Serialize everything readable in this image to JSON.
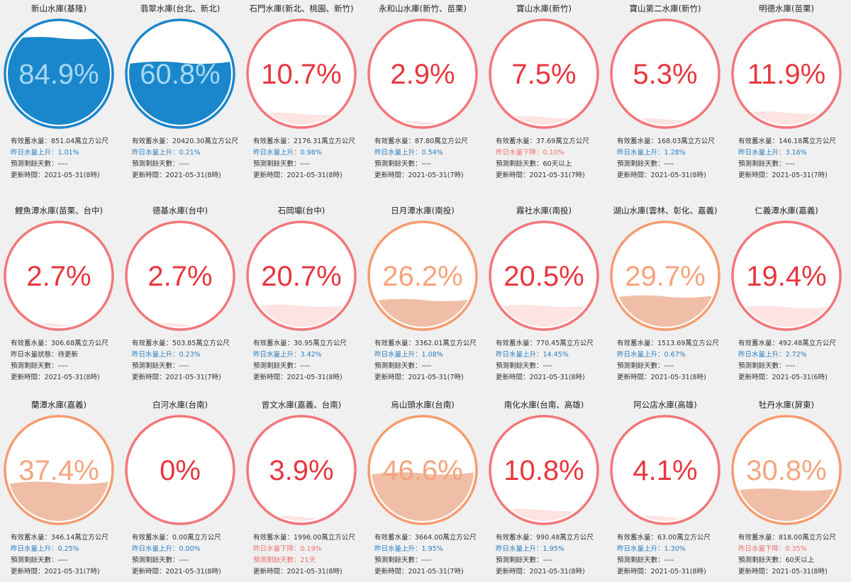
{
  "reservoirs": [
    {
      "name": "新山水庫(基隆)",
      "percent": {
        "value": 84.9,
        "label": "84.9%"
      },
      "color": "#1a87cc",
      "lines": [
        {
          "text": "有效蓄水量：851.04萬立方公尺",
          "color": "#333333"
        },
        {
          "text": "昨日水量上升：1.01%",
          "color": "#2b7fc0"
        },
        {
          "text": "預測剩餘天數：----",
          "color": "#333333"
        },
        {
          "text": "更新時間：2021-05-31(8時)",
          "color": "#333333"
        }
      ]
    },
    {
      "name": "翡翠水庫(台北、新北)",
      "percent": {
        "value": 60.8,
        "label": "60.8%"
      },
      "color": "#1a87cc",
      "lines": [
        {
          "text": "有效蓄水量：20420.30萬立方公尺",
          "color": "#333333"
        },
        {
          "text": "昨日水量上升：0.21%",
          "color": "#2b7fc0"
        },
        {
          "text": "預測剩餘天數：----",
          "color": "#333333"
        },
        {
          "text": "更新時間：2021-05-31(8時)",
          "color": "#333333"
        }
      ]
    },
    {
      "name": "石門水庫(新北、桃園、新竹)",
      "percent": {
        "value": 10.7,
        "label": "10.7%"
      },
      "color": "#f2777a",
      "lines": [
        {
          "text": "有效蓄水量：2176.31萬立方公尺",
          "color": "#333333"
        },
        {
          "text": "昨日水量上升：0.98%",
          "color": "#2b7fc0"
        },
        {
          "text": "預測剩餘天數：----",
          "color": "#333333"
        },
        {
          "text": "更新時間：2021-05-31(8時)",
          "color": "#333333"
        }
      ]
    },
    {
      "name": "永和山水庫(新竹、苗栗)",
      "percent": {
        "value": 2.9,
        "label": "2.9%"
      },
      "color": "#f2777a",
      "lines": [
        {
          "text": "有效蓄水量：87.80萬立方公尺",
          "color": "#333333"
        },
        {
          "text": "昨日水量上升：0.54%",
          "color": "#2b7fc0"
        },
        {
          "text": "預測剩餘天數：----",
          "color": "#333333"
        },
        {
          "text": "更新時間：2021-05-31(7時)",
          "color": "#333333"
        }
      ]
    },
    {
      "name": "寶山水庫(新竹)",
      "percent": {
        "value": 7.5,
        "label": "7.5%"
      },
      "color": "#f2777a",
      "lines": [
        {
          "text": "有效蓄水量：37.69萬立方公尺",
          "color": "#333333"
        },
        {
          "text": "昨日水量下降：0.10%",
          "color": "#f07070"
        },
        {
          "text": "預測剩餘天數：60天以上",
          "color": "#333333"
        },
        {
          "text": "更新時間：2021-05-31(7時)",
          "color": "#333333"
        }
      ]
    },
    {
      "name": "寶山第二水庫(新竹)",
      "percent": {
        "value": 5.3,
        "label": "5.3%"
      },
      "color": "#f2777a",
      "lines": [
        {
          "text": "有效蓄水量：168.03萬立方公尺",
          "color": "#333333"
        },
        {
          "text": "昨日水量上升：1.28%",
          "color": "#2b7fc0"
        },
        {
          "text": "預測剩餘天數：----",
          "color": "#333333"
        },
        {
          "text": "更新時間：2021-05-31(8時)",
          "color": "#333333"
        }
      ]
    },
    {
      "name": "明德水庫(苗栗)",
      "percent": {
        "value": 11.9,
        "label": "11.9%"
      },
      "color": "#f2777a",
      "lines": [
        {
          "text": "有效蓄水量：146.18萬立方公尺",
          "color": "#333333"
        },
        {
          "text": "昨日水量上升：3.16%",
          "color": "#2b7fc0"
        },
        {
          "text": "預測剩餘天數：----",
          "color": "#333333"
        },
        {
          "text": "更新時間：2021-05-31(7時)",
          "color": "#333333"
        }
      ]
    },
    {
      "name": "鯉魚潭水庫(苗栗、台中)",
      "percent": {
        "value": 2.7,
        "label": "2.7%"
      },
      "color": "#f2777a",
      "lines": [
        {
          "text": "有效蓄水量：306.68萬立方公尺",
          "color": "#333333"
        },
        {
          "text": "昨日水量狀態：待更新",
          "color": "#333333"
        },
        {
          "text": "預測剩餘天數：----",
          "color": "#333333"
        },
        {
          "text": "更新時間：2021-05-31(8時)",
          "color": "#333333"
        }
      ]
    },
    {
      "name": "德基水庫(台中)",
      "percent": {
        "value": 2.7,
        "label": "2.7%"
      },
      "color": "#f2777a",
      "lines": [
        {
          "text": "有效蓄水量：503.85萬立方公尺",
          "color": "#333333"
        },
        {
          "text": "昨日水量上升：0.23%",
          "color": "#2b7fc0"
        },
        {
          "text": "預測剩餘天數：----",
          "color": "#333333"
        },
        {
          "text": "更新時間：2021-05-31(7時)",
          "color": "#333333"
        }
      ]
    },
    {
      "name": "石岡壩(台中)",
      "percent": {
        "value": 20.7,
        "label": "20.7%"
      },
      "color": "#f2777a",
      "lines": [
        {
          "text": "有效蓄水量：30.95萬立方公尺",
          "color": "#333333"
        },
        {
          "text": "昨日水量上升：3.42%",
          "color": "#2b7fc0"
        },
        {
          "text": "預測剩餘天數：----",
          "color": "#333333"
        },
        {
          "text": "更新時間：2021-05-31(8時)",
          "color": "#333333"
        }
      ]
    },
    {
      "name": "日月潭水庫(南投)",
      "percent": {
        "value": 26.2,
        "label": "26.2%"
      },
      "color": "#f59c70",
      "lines": [
        {
          "text": "有效蓄水量：3362.01萬立方公尺",
          "color": "#333333"
        },
        {
          "text": "昨日水量上升：1.08%",
          "color": "#2b7fc0"
        },
        {
          "text": "預測剩餘天數：----",
          "color": "#333333"
        },
        {
          "text": "更新時間：2021-05-31(7時)",
          "color": "#333333"
        }
      ]
    },
    {
      "name": "霧社水庫(南投)",
      "percent": {
        "value": 20.5,
        "label": "20.5%"
      },
      "color": "#f2777a",
      "lines": [
        {
          "text": "有效蓄水量：770.45萬立方公尺",
          "color": "#333333"
        },
        {
          "text": "昨日水量上升：14.45%",
          "color": "#2b7fc0"
        },
        {
          "text": "預測剩餘天數：----",
          "color": "#333333"
        },
        {
          "text": "更新時間：2021-05-31(8時)",
          "color": "#333333"
        }
      ]
    },
    {
      "name": "湖山水庫(雲林、彰化、嘉義)",
      "percent": {
        "value": 29.7,
        "label": "29.7%"
      },
      "color": "#f59c70",
      "lines": [
        {
          "text": "有效蓄水量：1513.69萬立方公尺",
          "color": "#333333"
        },
        {
          "text": "昨日水量上升：0.67%",
          "color": "#2b7fc0"
        },
        {
          "text": "預測剩餘天數：----",
          "color": "#333333"
        },
        {
          "text": "更新時間：2021-05-31(8時)",
          "color": "#333333"
        }
      ]
    },
    {
      "name": "仁義潭水庫(嘉義)",
      "percent": {
        "value": 19.4,
        "label": "19.4%"
      },
      "color": "#f2777a",
      "lines": [
        {
          "text": "有效蓄水量：492.48萬立方公尺",
          "color": "#333333"
        },
        {
          "text": "昨日水量上升：2.72%",
          "color": "#2b7fc0"
        },
        {
          "text": "預測剩餘天數：----",
          "color": "#333333"
        },
        {
          "text": "更新時間：2021-05-31(6時)",
          "color": "#333333"
        }
      ]
    },
    {
      "name": "蘭潭水庫(嘉義)",
      "percent": {
        "value": 37.4,
        "label": "37.4%"
      },
      "color": "#f59c70",
      "lines": [
        {
          "text": "有效蓄水量：346.14萬立方公尺",
          "color": "#333333"
        },
        {
          "text": "昨日水量上升：0.25%",
          "color": "#2b7fc0"
        },
        {
          "text": "預測剩餘天數：----",
          "color": "#333333"
        },
        {
          "text": "更新時間：2021-05-31(7時)",
          "color": "#333333"
        }
      ]
    },
    {
      "name": "白河水庫(台南)",
      "percent": {
        "value": 0,
        "label": "0%"
      },
      "color": "#f2777a",
      "lines": [
        {
          "text": "有效蓄水量：0.00萬立方公尺",
          "color": "#333333"
        },
        {
          "text": "昨日水量上升：0.00%",
          "color": "#2b7fc0"
        },
        {
          "text": "預測剩餘天數：----",
          "color": "#333333"
        },
        {
          "text": "更新時間：2021-05-31(8時)",
          "color": "#333333"
        }
      ]
    },
    {
      "name": "曾文水庫(嘉義、台南)",
      "percent": {
        "value": 3.9,
        "label": "3.9%"
      },
      "color": "#f2777a",
      "lines": [
        {
          "text": "有效蓄水量：1996.00萬立方公尺",
          "color": "#333333"
        },
        {
          "text": "昨日水量下降：0.19%",
          "color": "#f07070"
        },
        {
          "text": "預測剩餘天數：21天",
          "color": "#f07070"
        },
        {
          "text": "更新時間：2021-05-31(8時)",
          "color": "#333333"
        }
      ]
    },
    {
      "name": "烏山頭水庫(台南)",
      "percent": {
        "value": 46.6,
        "label": "46.6%"
      },
      "color": "#f59c70",
      "lines": [
        {
          "text": "有效蓄水量：3664.00萬立方公尺",
          "color": "#333333"
        },
        {
          "text": "昨日水量上升：1.95%",
          "color": "#2b7fc0"
        },
        {
          "text": "預測剩餘天數：----",
          "color": "#333333"
        },
        {
          "text": "更新時間：2021-05-31(7時)",
          "color": "#333333"
        }
      ]
    },
    {
      "name": "南化水庫(台南、高雄)",
      "percent": {
        "value": 10.8,
        "label": "10.8%"
      },
      "color": "#f2777a",
      "lines": [
        {
          "text": "有效蓄水量：990.48萬立方公尺",
          "color": "#333333"
        },
        {
          "text": "昨日水量上升：1.95%",
          "color": "#2b7fc0"
        },
        {
          "text": "預測剩餘天數：----",
          "color": "#333333"
        },
        {
          "text": "更新時間：2021-05-31(8時)",
          "color": "#333333"
        }
      ]
    },
    {
      "name": "阿公店水庫(高雄)",
      "percent": {
        "value": 4.1,
        "label": "4.1%"
      },
      "color": "#f2777a",
      "lines": [
        {
          "text": "有效蓄水量：63.00萬立方公尺",
          "color": "#333333"
        },
        {
          "text": "昨日水量上升：1.30%",
          "color": "#2b7fc0"
        },
        {
          "text": "預測剩餘天數：----",
          "color": "#333333"
        },
        {
          "text": "更新時間：2021-05-31(8時)",
          "color": "#333333"
        }
      ]
    },
    {
      "name": "牡丹水庫(屏東)",
      "percent": {
        "value": 30.8,
        "label": "30.8%"
      },
      "color": "#f59c70",
      "lines": [
        {
          "text": "有效蓄水量：818.00萬立方公尺",
          "color": "#333333"
        },
        {
          "text": "昨日水量下降：0.35%",
          "color": "#f07070"
        },
        {
          "text": "預測剩餘天數：60天以上",
          "color": "#333333"
        },
        {
          "text": "更新時間：2021-05-31(8時)",
          "color": "#333333"
        }
      ]
    }
  ]
}
